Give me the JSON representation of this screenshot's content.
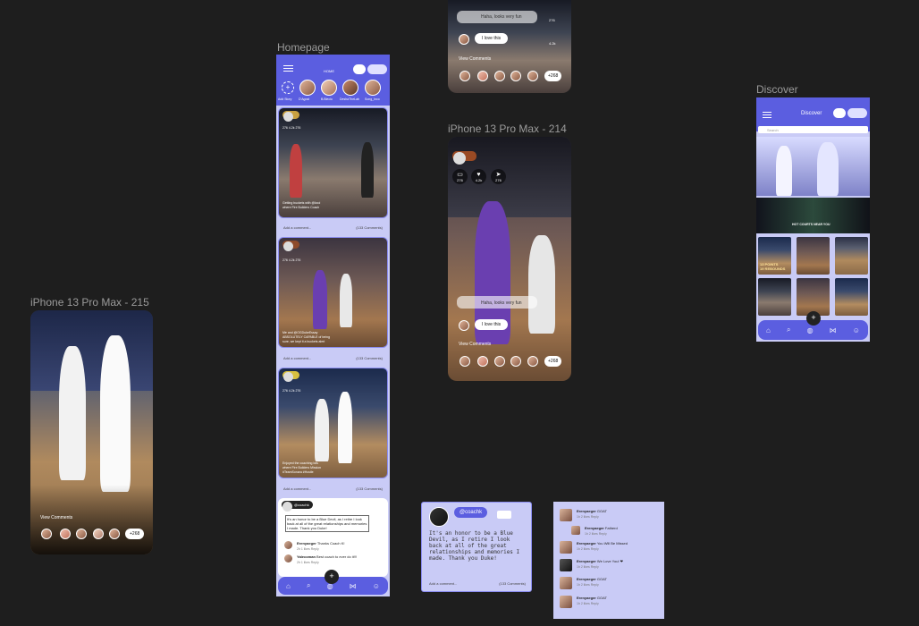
{
  "frames": {
    "f215": {
      "label": "iPhone 13 Pro Max - 215",
      "view_comments": "View Comments",
      "count": "+268"
    },
    "homepage": {
      "label": "Homepage",
      "home_label": "HOME",
      "stories": [
        "Add Story",
        "D'Agost",
        "B.Blecio",
        "DeshaTheLab",
        "Song_Inco"
      ],
      "cards": [
        {
          "stats": [
            "276",
            "4.2k",
            "276"
          ],
          "comment_placeholder": "Add a comment...",
          "comment_count": "(133 Comments)",
          "caption": "Getting buckets with @kxoi\nwhere Fire Builders Coach"
        },
        {
          "stats": [
            "276",
            "4.2k",
            "276"
          ],
          "comment_placeholder": "Add a comment...",
          "comment_count": "(133 Comments)",
          "caption": "Me and @OGDukeEssay\nABSOLUTELY CAPABLE of being\nsure, we kept it a buckets alert"
        },
        {
          "stats": [
            "276",
            "4.2k",
            "276"
          ],
          "comment_placeholder": "Add a comment...",
          "comment_count": "(133 Comments)",
          "caption": "Enjoyed the coaching lots\nwhere Fire Builders Mission\n#TeamSonara #Hustle"
        }
      ],
      "text_post": {
        "user": "@coachk",
        "body": "It's an honor to be a Blue Devil, as I retire I look back at all of the great relationships and memories I made. Thank you Duke!",
        "comments": [
          {
            "name": "Erenyaeger",
            "text": "Thanks Coach K!",
            "meta": "2h 1 likes Reply"
          },
          {
            "name": "Yalecoman",
            "text": "Best coach to ever do it!!!",
            "meta": "2h 1 likes Reply"
          }
        ]
      }
    },
    "f214": {
      "label": "iPhone 13 Pro Max - 214",
      "stats": [
        "276",
        "4.2k",
        "276"
      ],
      "comment_bubble": "Haha, looks very fun",
      "love_text": "I love this",
      "view_comments": "View Comments",
      "count": "+268",
      "top_bubble": "Haha, looks very fun",
      "top_love": "I love this",
      "top_stats": [
        "276",
        "4.2k"
      ]
    },
    "discover": {
      "label": "Discover",
      "title": "Discover",
      "search_placeholder": "Search",
      "banner_text": "HOT COURTS NEAR YOU",
      "tile_text": "13 POINTS\n19 REBOUNDS"
    },
    "post_detail": {
      "user": "@coachk",
      "body": "It's an honor to be a Blue Devil, as I retire I look back at all of the great relationships and memories I made. Thank you Duke!",
      "comment_placeholder": "Add a comment...",
      "comment_count": "(133 Comments)"
    },
    "comments_panel": {
      "comments": [
        {
          "name": "Erenyaeger",
          "text": "GOAT",
          "meta": "1h 2 likes Reply"
        },
        {
          "name": "Erenyaeger",
          "text": "Fatherd",
          "meta": "1h 2 likes Reply"
        },
        {
          "name": "Erenyaeger",
          "text": "You Will Be Missed",
          "meta": "1h 2 likes Reply"
        },
        {
          "name": "Erenyaeger",
          "text": "We Love You! ❤",
          "meta": "1h 2 likes Reply"
        },
        {
          "name": "Erenyaeger",
          "text": "GOAT",
          "meta": "1h 2 likes Reply"
        },
        {
          "name": "Erenyaeger",
          "text": "GOAT",
          "meta": "1h 2 likes Reply"
        }
      ]
    }
  },
  "colors": {
    "accent": "#5b5ee0",
    "panel": "#c9cbf6",
    "canvas": "#1e1e1e"
  }
}
